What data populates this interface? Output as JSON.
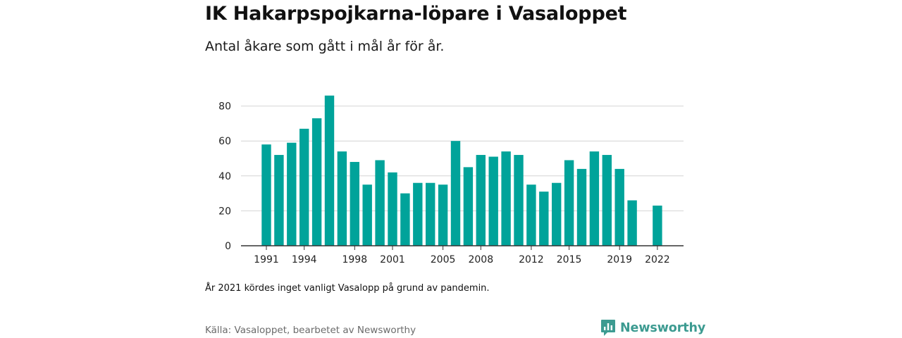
{
  "title": "IK Hakarpspojkarna-löpare i Vasaloppet",
  "subtitle": "Antal åkare som gått i mål år för år.",
  "note": "År 2021 kördes inget vanligt Vasalopp på grund av pandemin.",
  "source": "Källa: Vasaloppet, bearbetet av Newsworthy",
  "logo": {
    "text": "Newsworthy",
    "icon": "newsworthy-logo-icon",
    "color": "#3d9b91"
  },
  "colors": {
    "bar": "#00a39a",
    "grid": "#d4d4d4",
    "axis": "#333333"
  },
  "chart_data": {
    "type": "bar",
    "title": "IK Hakarpspojkarna-löpare i Vasaloppet",
    "subtitle": "Antal åkare som gått i mål år för år.",
    "xlabel": "",
    "ylabel": "",
    "ylim": [
      0,
      90
    ],
    "yticks": [
      0,
      20,
      40,
      60,
      80
    ],
    "grid": true,
    "legend": "none",
    "x_tick_labels": [
      "1991",
      "1994",
      "1998",
      "2001",
      "2005",
      "2008",
      "2012",
      "2015",
      "2019",
      "2022"
    ],
    "categories": [
      "1991",
      "1992",
      "1993",
      "1994",
      "1995",
      "1996",
      "1997",
      "1998",
      "1999",
      "2000",
      "2001",
      "2002",
      "2003",
      "2004",
      "2005",
      "2006",
      "2007",
      "2008",
      "2009",
      "2010",
      "2011",
      "2012",
      "2013",
      "2014",
      "2015",
      "2016",
      "2017",
      "2018",
      "2019",
      "2020",
      "2021",
      "2022"
    ],
    "values": [
      58,
      52,
      59,
      67,
      73,
      86,
      54,
      48,
      35,
      49,
      42,
      30,
      36,
      36,
      35,
      60,
      45,
      52,
      51,
      54,
      52,
      35,
      31,
      36,
      49,
      44,
      54,
      52,
      44,
      26,
      null,
      23
    ]
  }
}
